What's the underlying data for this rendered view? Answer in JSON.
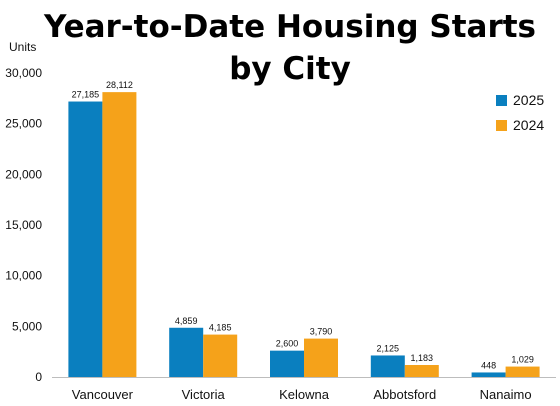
{
  "chart_data": {
    "type": "bar",
    "title_line1": "Year-to-Date Housing Starts",
    "title_line2": "by City",
    "ylabel": "Units",
    "categories": [
      "Vancouver",
      "Victoria",
      "Kelowna",
      "Abbotsford",
      "Nanaimo"
    ],
    "series": [
      {
        "name": "2025",
        "color": "#0a7fbf",
        "values": [
          27185,
          4859,
          2600,
          2125,
          448
        ],
        "labels": [
          "27,185",
          "4,859",
          "2,600",
          "2,125",
          "448"
        ]
      },
      {
        "name": "2024",
        "color": "#f5a21a",
        "values": [
          28112,
          4185,
          3790,
          1183,
          1029
        ],
        "labels": [
          "28,112",
          "4,185",
          "3,790",
          "1,183",
          "1,029"
        ]
      }
    ],
    "ylim": [
      0,
      30000
    ],
    "yticks": [
      0,
      5000,
      10000,
      15000,
      20000,
      25000,
      30000
    ],
    "ytick_labels": [
      "0",
      "5,000",
      "10,000",
      "15,000",
      "20,000",
      "25,000",
      "30,000"
    ],
    "grid": false,
    "legend_position": "top-right"
  }
}
